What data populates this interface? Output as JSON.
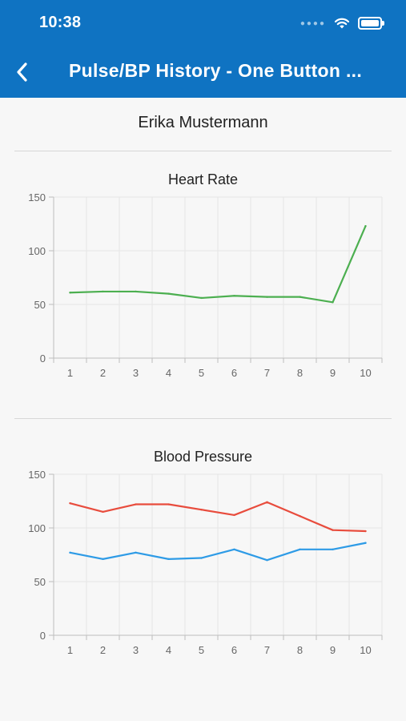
{
  "status_bar": {
    "time": "10:38",
    "signal_icon": "signal-dots-icon",
    "wifi_icon": "wifi-icon",
    "battery_icon": "battery-icon"
  },
  "app_bar": {
    "title": "Pulse/BP History - One Button ...",
    "back_icon": "chevron-left-icon",
    "color": "#0f73c2"
  },
  "patient": {
    "name": "Erika Mustermann"
  },
  "chart_data": [
    {
      "type": "line",
      "title": "Heart Rate",
      "x": [
        1,
        2,
        3,
        4,
        5,
        6,
        7,
        8,
        9,
        10
      ],
      "ylim": [
        0,
        150
      ],
      "yticks": [
        0,
        50,
        100,
        150
      ],
      "grid": true,
      "series": [
        {
          "values": [
            61,
            62,
            62,
            60,
            56,
            58,
            57,
            57,
            52,
            123
          ],
          "color": "#4caf50"
        }
      ]
    },
    {
      "type": "line",
      "title": "Blood Pressure",
      "x": [
        1,
        2,
        3,
        4,
        5,
        6,
        7,
        8,
        9,
        10
      ],
      "ylim": [
        0,
        150
      ],
      "yticks": [
        0,
        50,
        100,
        150
      ],
      "grid": true,
      "series": [
        {
          "values": [
            123,
            115,
            122,
            122,
            117,
            112,
            124,
            111,
            98,
            97
          ],
          "color": "#e84c3d"
        },
        {
          "values": [
            77,
            71,
            77,
            71,
            72,
            80,
            70,
            80,
            80,
            86
          ],
          "color": "#2e9be6"
        }
      ]
    }
  ]
}
